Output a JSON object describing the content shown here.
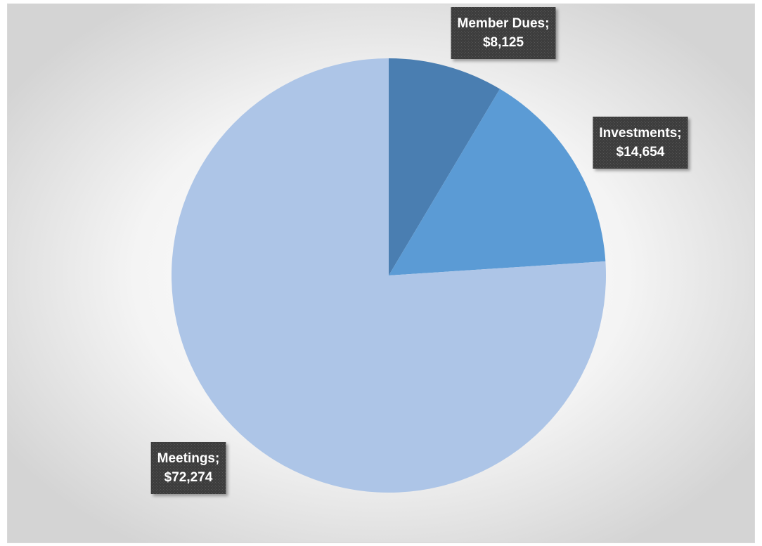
{
  "chart_data": {
    "type": "pie",
    "categories": [
      "Member Dues",
      "Investments",
      "Meetings"
    ],
    "values": [
      8125,
      14654,
      72274
    ],
    "value_labels": [
      "$8,125",
      "$14,654",
      "$72,274"
    ],
    "label_separator": ";",
    "colors": [
      "#4a7eb1",
      "#5b9bd5",
      "#adc5e7"
    ]
  }
}
